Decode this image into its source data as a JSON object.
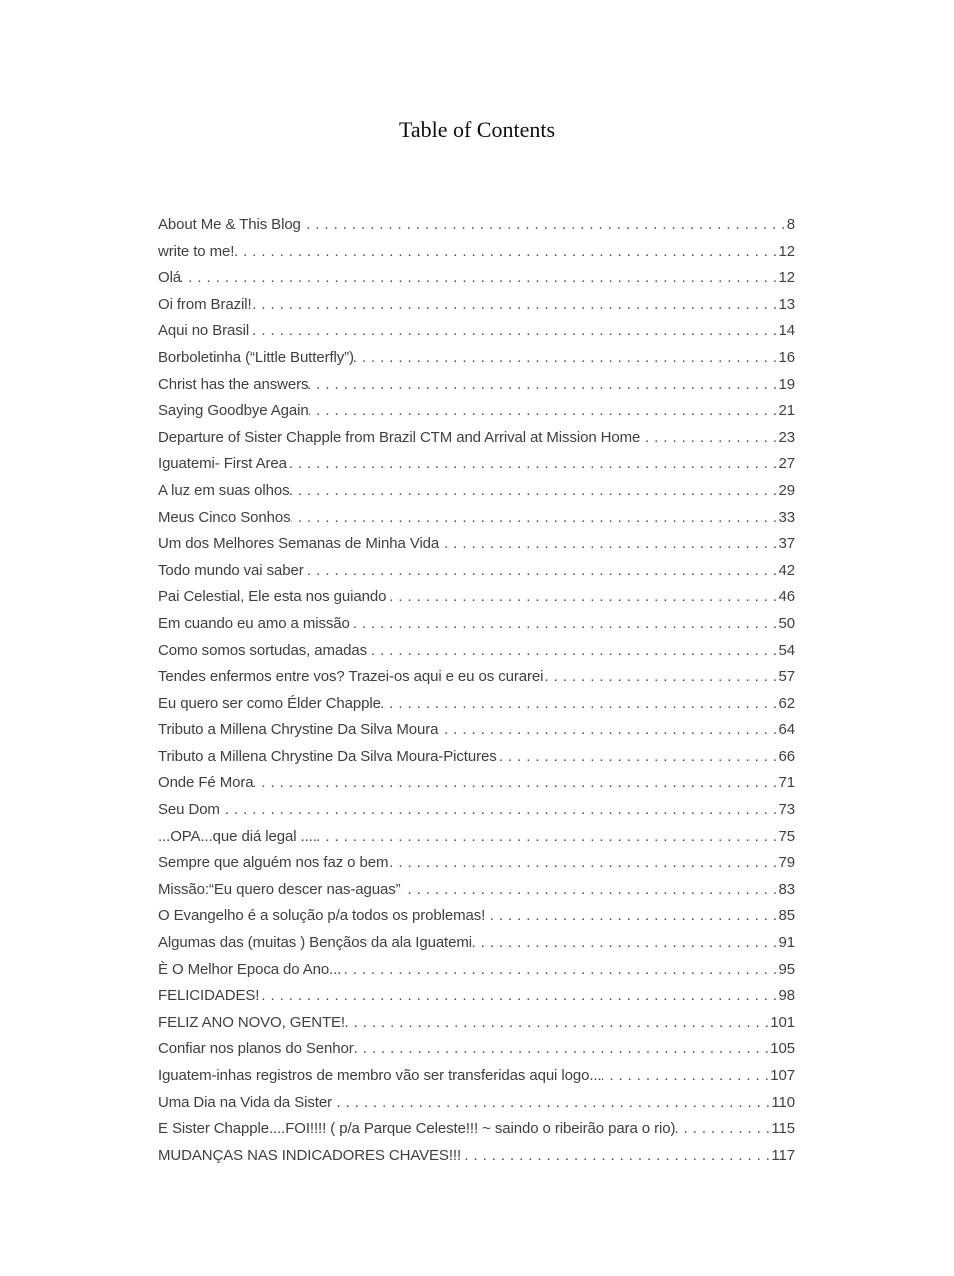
{
  "page": {
    "title": "Table of Contents"
  },
  "colors": {
    "body_text": "#3f3f3f",
    "title_text": "#0d0d0d",
    "background": "#ffffff"
  },
  "toc": {
    "entries": [
      {
        "label": "About Me & This Blog",
        "page": "8"
      },
      {
        "label": "write to me!",
        "page": "12"
      },
      {
        "label": "Olá",
        "page": "12"
      },
      {
        "label": "Oi from Brazil!",
        "page": "13"
      },
      {
        "label": "Aqui no Brasil",
        "page": "14"
      },
      {
        "label": "Borboletinha (“Little Butterfly”)",
        "page": "16"
      },
      {
        "label": "Christ has the answers",
        "page": "19"
      },
      {
        "label": "Saying Goodbye Again",
        "page": "21"
      },
      {
        "label": "Departure of Sister Chapple from Brazil CTM and Arrival at Mission Home",
        "page": "23"
      },
      {
        "label": "Iguatemi- First Area",
        "page": "27"
      },
      {
        "label": "A luz em suas olhos",
        "page": "29"
      },
      {
        "label": "Meus Cinco Sonhos",
        "page": "33"
      },
      {
        "label": "Um dos Melhores Semanas de Minha Vida",
        "page": "37"
      },
      {
        "label": "Todo mundo vai saber",
        "page": "42"
      },
      {
        "label": "Pai Celestial, Ele esta nos guiando",
        "page": "46"
      },
      {
        "label": "Em cuando eu amo a missão",
        "page": "50"
      },
      {
        "label": "Como somos sortudas, amadas",
        "page": "54"
      },
      {
        "label": "Tendes enfermos entre vos? Trazei-os aqui e eu os curarei",
        "page": "57"
      },
      {
        "label": "Eu quero ser como Élder Chapple",
        "page": "62"
      },
      {
        "label": "Tributo a Millena Chrystine Da Silva Moura",
        "page": "64"
      },
      {
        "label": "Tributo a Millena Chrystine Da Silva Moura-Pictures",
        "page": "66"
      },
      {
        "label": "Onde Fé Mora",
        "page": "71"
      },
      {
        "label": "Seu Dom",
        "page": "73"
      },
      {
        "label": "...OPA...que diá legal ....",
        "page": "75"
      },
      {
        "label": "Sempre que alguém nos faz o bem",
        "page": "79"
      },
      {
        "label": "Missão:“Eu quero descer nas-aguas”",
        "page": "83"
      },
      {
        "label": "O Evangelho é a solução p/a todos os problemas!",
        "page": "85"
      },
      {
        "label": "Algumas das (muitas ) Bençãos da ala Iguatemi",
        "page": "91"
      },
      {
        "label": "È O Melhor Epoca do Ano...",
        "page": "95"
      },
      {
        "label": "FELICIDADES!",
        "page": "98"
      },
      {
        "label": "FELIZ ANO NOVO, GENTE!",
        "page": "101"
      },
      {
        "label": "Confiar nos planos do Senhor",
        "page": "105"
      },
      {
        "label": "Iguatem-inhas registros de membro vão ser transferidas aqui logo...",
        "page": "107"
      },
      {
        "label": "Uma Dia na Vida da Sister",
        "page": "110"
      },
      {
        "label": "E Sister Chapple....FOI!!!! ( p/a Parque Celeste!!! ~ saindo o ribeirão para o rio)",
        "page": "115"
      },
      {
        "label": "MUDANÇAS NAS INDICADORES CHAVES!!!",
        "page": "117"
      }
    ]
  }
}
